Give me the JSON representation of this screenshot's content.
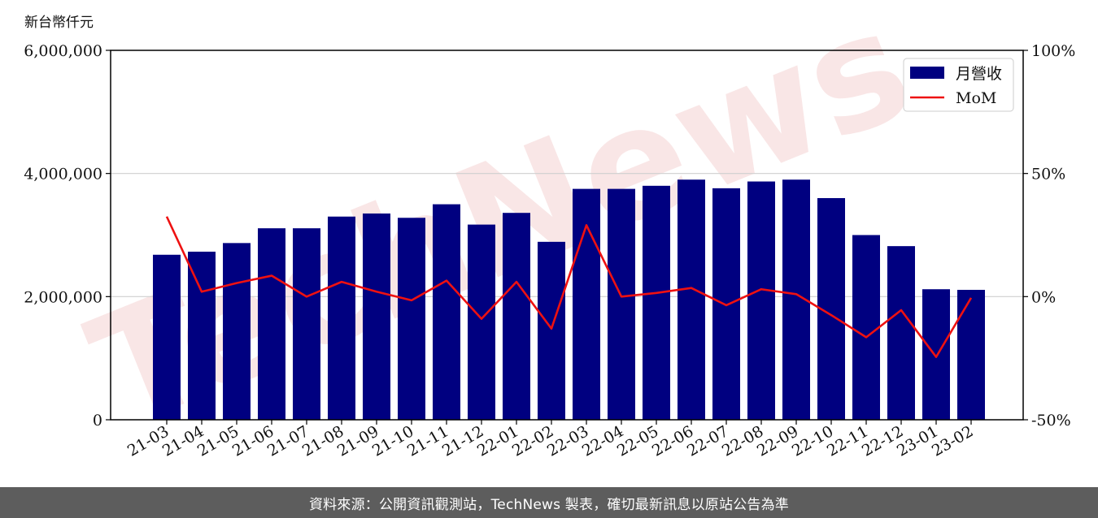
{
  "chart_data": {
    "type": "bar",
    "left_axis_unit": "新台幣仟元",
    "categories": [
      "21-03",
      "21-04",
      "21-05",
      "21-06",
      "21-07",
      "21-08",
      "21-09",
      "21-10",
      "21-11",
      "21-12",
      "22-01",
      "22-02",
      "22-03",
      "22-04",
      "22-05",
      "22-06",
      "22-07",
      "22-08",
      "22-09",
      "22-10",
      "22-11",
      "22-12",
      "23-01",
      "23-02"
    ],
    "series": [
      {
        "name": "月營收",
        "kind": "bar",
        "axis": "left",
        "color": "#000080",
        "values": [
          2680000,
          2730000,
          2870000,
          3110000,
          3110000,
          3300000,
          3350000,
          3280000,
          3500000,
          3170000,
          3360000,
          2890000,
          3750000,
          3750000,
          3800000,
          3900000,
          3760000,
          3870000,
          3900000,
          3600000,
          3000000,
          2820000,
          2120000,
          2110000
        ]
      },
      {
        "name": "MoM",
        "kind": "line",
        "axis": "right",
        "color": "#ee1111",
        "values": [
          32.5,
          2.0,
          5.5,
          8.5,
          0.0,
          6.0,
          2.0,
          -1.5,
          6.5,
          -9.0,
          6.0,
          -13.0,
          29.0,
          0.0,
          1.5,
          3.5,
          -3.5,
          3.0,
          1.0,
          -7.5,
          -16.5,
          -5.5,
          -24.5,
          -0.5
        ]
      }
    ],
    "ylim_left": [
      0,
      6000000
    ],
    "yticks_left": [
      "0",
      "2,000,000",
      "4,000,000",
      "6,000,000"
    ],
    "ylim_right": [
      -50,
      100
    ],
    "yticks_right": [
      "-50%",
      "0%",
      "50%",
      "100%"
    ],
    "grid": "horizontal",
    "legend_position": "top-right"
  },
  "watermark": "TechNews",
  "footer": {
    "text": "資料來源：公開資訊觀測站，TechNews 製表，確切最新訊息以原站公告為準"
  }
}
